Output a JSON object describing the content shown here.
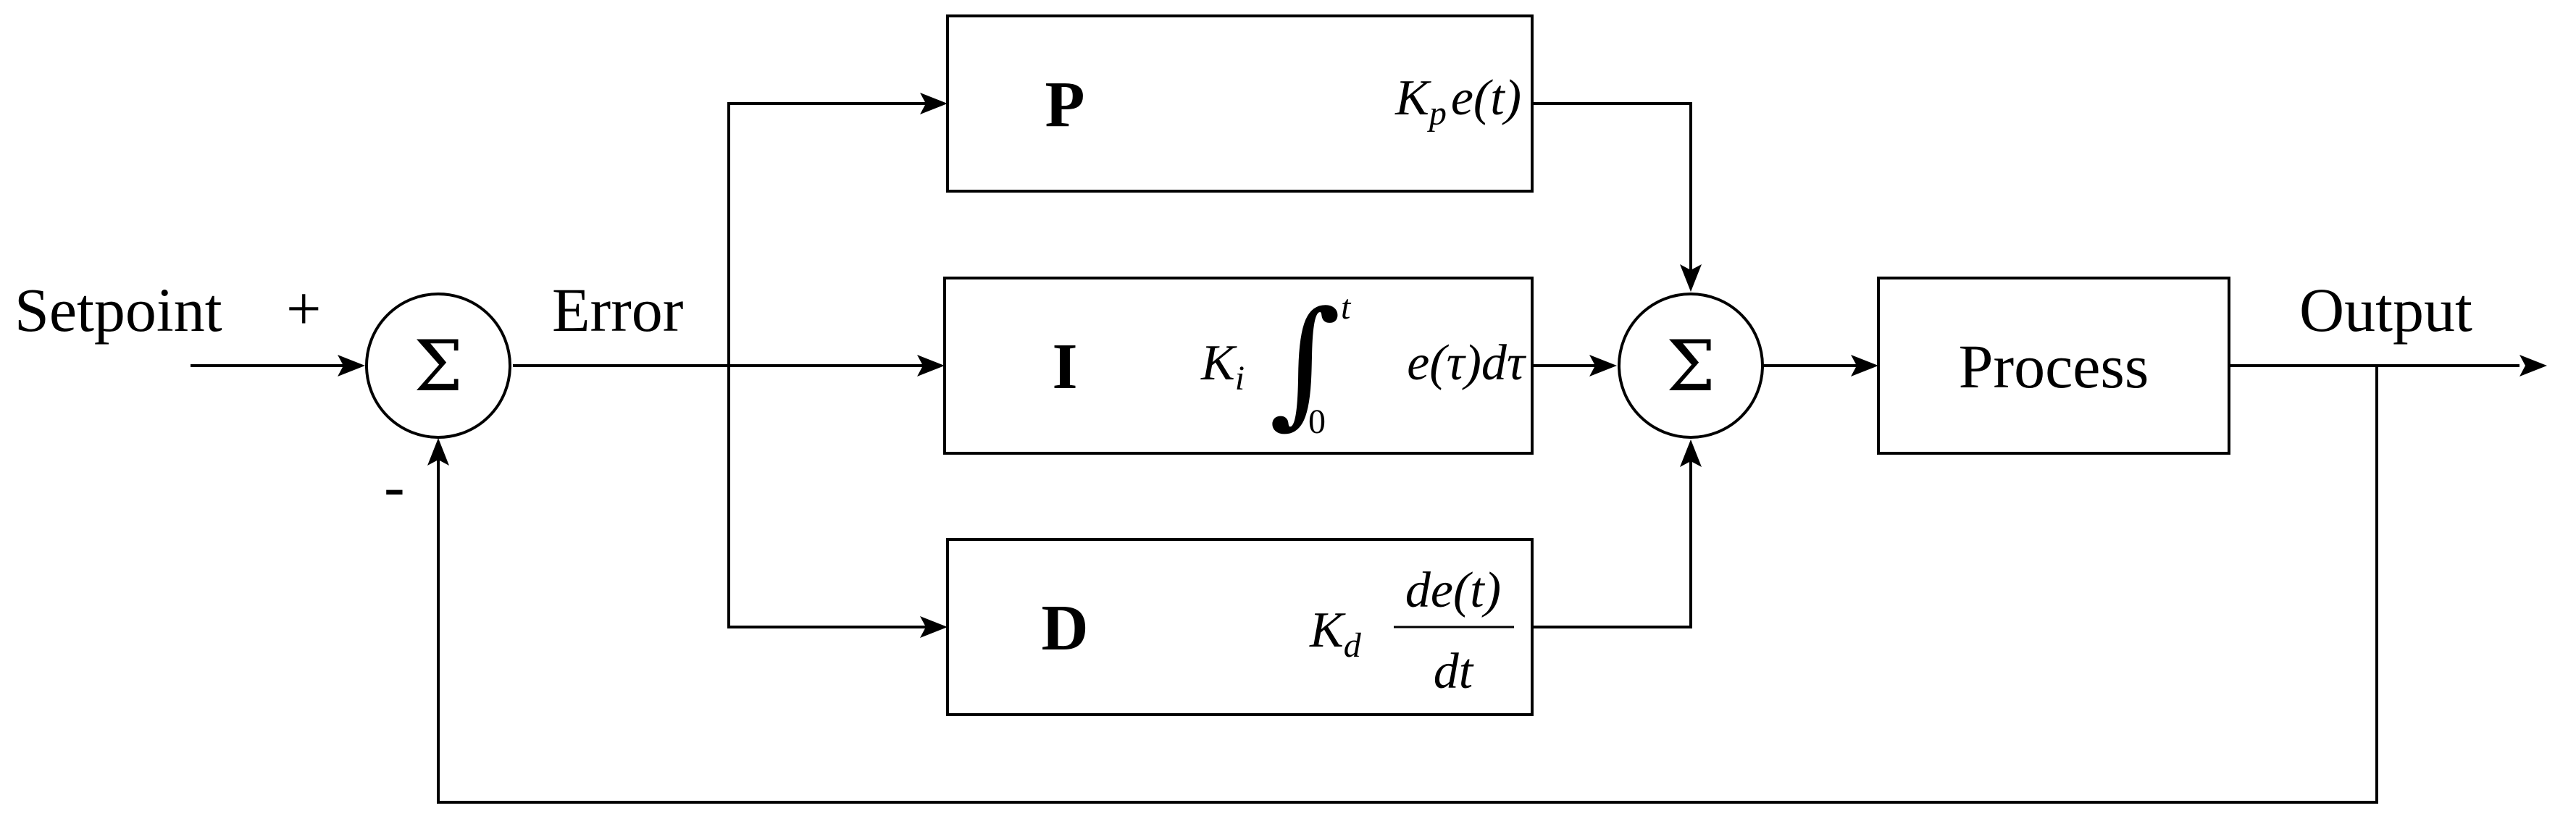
{
  "signals": {
    "setpoint": "Setpoint",
    "plus_sign": "+",
    "minus_sign": "-",
    "error": "Error",
    "output": "Output"
  },
  "summing_junction_symbol": "Σ",
  "blocks": {
    "p": {
      "label": "P",
      "gain": "K",
      "gain_sub": "p",
      "expr": "e(t)"
    },
    "i": {
      "label": "I",
      "gain": "K",
      "gain_sub": "i",
      "integral": "∫",
      "upper_limit": "t",
      "lower_limit": "0",
      "integrand": "e(τ)dτ"
    },
    "d": {
      "label": "D",
      "gain": "K",
      "gain_sub": "d",
      "numerator": "de(t)",
      "denominator": "dt"
    },
    "process": {
      "label": "Process"
    }
  }
}
